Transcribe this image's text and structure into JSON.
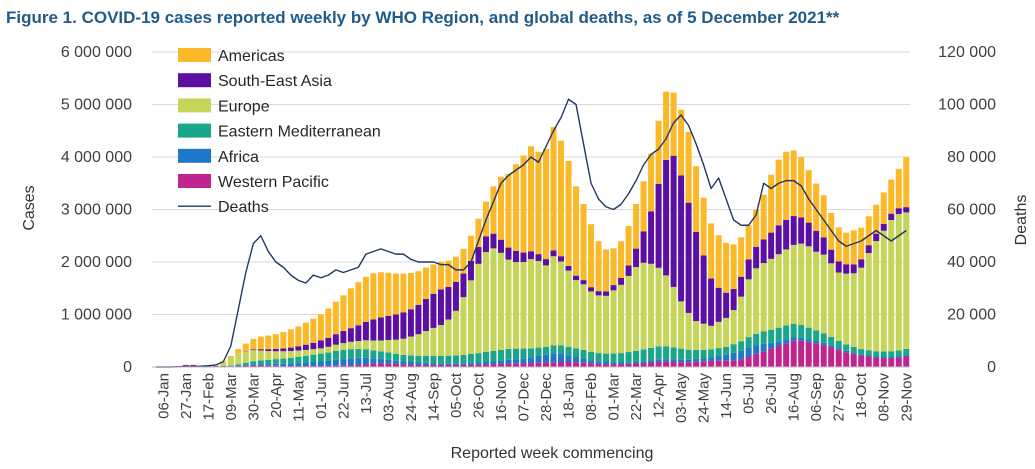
{
  "chart_data": {
    "type": "bar",
    "title": "Figure 1. COVID-19 cases reported weekly by WHO Region, and global deaths, as of 5 December 2021**",
    "xlabel": "Reported week commencing",
    "ylabel": "Cases",
    "y2label": "Deaths",
    "ylim": [
      0,
      6000000
    ],
    "y2lim": [
      0,
      120000
    ],
    "y_ticks": [
      "0",
      "1 000 000",
      "2 000 000",
      "3 000 000",
      "4 000 000",
      "5 000 000",
      "6 000 000"
    ],
    "y2_ticks": [
      "0",
      "20 000",
      "40 000",
      "60 000",
      "80 000",
      "100 000",
      "120 000"
    ],
    "x_tick_labels": [
      "06-Jan",
      "27-Jan",
      "17-Feb",
      "09-Mar",
      "30-Mar",
      "20-Apr",
      "11-May",
      "01-Jun",
      "22-Jun",
      "13-Jul",
      "03-Aug",
      "24-Aug",
      "14-Sep",
      "05-Oct",
      "26-Oct",
      "16-Nov",
      "07-Dec",
      "28-Dec",
      "18-Jan",
      "08-Feb",
      "01-Mar",
      "22-Mar",
      "12-Apr",
      "03-May",
      "24-May",
      "14-Jun",
      "05-Jul",
      "26-Jul",
      "16-Aug",
      "06-Sep",
      "27-Sep",
      "18-Oct",
      "08-Nov",
      "29-Nov"
    ],
    "categories": [
      "2019-12-30",
      "2020-01-06",
      "2020-01-13",
      "2020-01-20",
      "2020-01-27",
      "2020-02-03",
      "2020-02-10",
      "2020-02-17",
      "2020-02-24",
      "2020-03-02",
      "2020-03-09",
      "2020-03-16",
      "2020-03-23",
      "2020-03-30",
      "2020-04-06",
      "2020-04-13",
      "2020-04-20",
      "2020-04-27",
      "2020-05-04",
      "2020-05-11",
      "2020-05-18",
      "2020-05-25",
      "2020-06-01",
      "2020-06-08",
      "2020-06-15",
      "2020-06-22",
      "2020-06-29",
      "2020-07-06",
      "2020-07-13",
      "2020-07-20",
      "2020-07-27",
      "2020-08-03",
      "2020-08-10",
      "2020-08-17",
      "2020-08-24",
      "2020-08-31",
      "2020-09-07",
      "2020-09-14",
      "2020-09-21",
      "2020-09-28",
      "2020-10-05",
      "2020-10-12",
      "2020-10-19",
      "2020-10-26",
      "2020-11-02",
      "2020-11-09",
      "2020-11-16",
      "2020-11-23",
      "2020-11-30",
      "2020-12-07",
      "2020-12-14",
      "2020-12-21",
      "2020-12-28",
      "2021-01-04",
      "2021-01-11",
      "2021-01-18",
      "2021-01-25",
      "2021-02-01",
      "2021-02-08",
      "2021-02-15",
      "2021-02-22",
      "2021-03-01",
      "2021-03-08",
      "2021-03-15",
      "2021-03-22",
      "2021-03-29",
      "2021-04-05",
      "2021-04-12",
      "2021-04-19",
      "2021-04-26",
      "2021-05-03",
      "2021-05-10",
      "2021-05-17",
      "2021-05-24",
      "2021-05-31",
      "2021-06-07",
      "2021-06-14",
      "2021-06-21",
      "2021-06-28",
      "2021-07-05",
      "2021-07-12",
      "2021-07-19",
      "2021-07-26",
      "2021-08-02",
      "2021-08-09",
      "2021-08-16",
      "2021-08-23",
      "2021-08-30",
      "2021-09-06",
      "2021-09-13",
      "2021-09-20",
      "2021-09-27",
      "2021-10-04",
      "2021-10-11",
      "2021-10-18",
      "2021-10-25",
      "2021-11-01",
      "2021-11-08",
      "2021-11-15",
      "2021-11-22",
      "2021-11-29"
    ],
    "legend": [
      "Americas",
      "South-East Asia",
      "Europe",
      "Eastern Mediterranean",
      "Africa",
      "Western Pacific",
      "Deaths"
    ],
    "legend_position": "top-left",
    "grid": true,
    "colors": {
      "Western Pacific": "#c0248f",
      "Africa": "#1f77c8",
      "Eastern Mediterranean": "#1aa68a",
      "Europe": "#c5d55a",
      "South-East Asia": "#5b0fa3",
      "Americas": "#fbb829",
      "Deaths": "#1f3864"
    },
    "series": [
      {
        "name": "Western Pacific",
        "values": [
          0,
          0,
          10000,
          20000,
          40000,
          40000,
          20000,
          20000,
          20000,
          20000,
          15000,
          20000,
          25000,
          30000,
          30000,
          25000,
          25000,
          20000,
          20000,
          20000,
          20000,
          20000,
          20000,
          20000,
          25000,
          30000,
          35000,
          45000,
          55000,
          65000,
          70000,
          70000,
          60000,
          50000,
          45000,
          40000,
          40000,
          40000,
          40000,
          40000,
          40000,
          40000,
          45000,
          45000,
          50000,
          55000,
          60000,
          65000,
          70000,
          75000,
          75000,
          80000,
          85000,
          90000,
          95000,
          95000,
          90000,
          80000,
          70000,
          60000,
          55000,
          55000,
          55000,
          60000,
          65000,
          75000,
          85000,
          95000,
          100000,
          95000,
          90000,
          90000,
          100000,
          110000,
          115000,
          120000,
          120000,
          130000,
          150000,
          200000,
          250000,
          300000,
          350000,
          400000,
          450000,
          500000,
          500000,
          480000,
          450000,
          420000,
          380000,
          330000,
          280000,
          250000,
          220000,
          200000,
          180000,
          170000,
          170000,
          180000,
          200000
        ]
      },
      {
        "name": "Africa",
        "values": [
          0,
          0,
          0,
          0,
          0,
          0,
          0,
          0,
          0,
          0,
          5000,
          10000,
          15000,
          20000,
          25000,
          30000,
          35000,
          40000,
          45000,
          55000,
          65000,
          75000,
          85000,
          95000,
          110000,
          120000,
          130000,
          130000,
          120000,
          100000,
          85000,
          70000,
          60000,
          55000,
          50000,
          45000,
          40000,
          35000,
          30000,
          30000,
          30000,
          30000,
          35000,
          40000,
          45000,
          50000,
          55000,
          70000,
          80000,
          90000,
          110000,
          130000,
          150000,
          170000,
          160000,
          130000,
          100000,
          80000,
          60000,
          50000,
          40000,
          35000,
          30000,
          30000,
          30000,
          35000,
          40000,
          45000,
          50000,
          50000,
          50000,
          50000,
          55000,
          60000,
          70000,
          90000,
          110000,
          140000,
          160000,
          170000,
          160000,
          140000,
          110000,
          90000,
          80000,
          70000,
          60000,
          50000,
          45000,
          40000,
          35000,
          30000,
          28000,
          25000,
          22000,
          20000,
          20000,
          20000,
          20000,
          20000,
          25000
        ]
      },
      {
        "name": "Eastern Mediterranean",
        "values": [
          0,
          0,
          0,
          0,
          0,
          0,
          0,
          0,
          0,
          0,
          10000,
          20000,
          40000,
          60000,
          70000,
          80000,
          90000,
          100000,
          110000,
          120000,
          130000,
          140000,
          150000,
          160000,
          170000,
          175000,
          175000,
          170000,
          165000,
          150000,
          140000,
          135000,
          130000,
          125000,
          125000,
          130000,
          135000,
          140000,
          140000,
          145000,
          150000,
          160000,
          170000,
          180000,
          195000,
          205000,
          210000,
          210000,
          200000,
          185000,
          170000,
          160000,
          150000,
          150000,
          155000,
          160000,
          165000,
          165000,
          160000,
          155000,
          160000,
          170000,
          180000,
          195000,
          210000,
          225000,
          240000,
          250000,
          245000,
          230000,
          210000,
          190000,
          170000,
          155000,
          150000,
          150000,
          155000,
          165000,
          180000,
          200000,
          220000,
          240000,
          250000,
          260000,
          260000,
          255000,
          240000,
          220000,
          200000,
          180000,
          160000,
          140000,
          120000,
          110000,
          100000,
          100000,
          100000,
          105000,
          110000,
          115000,
          120000
        ]
      },
      {
        "name": "Europe",
        "values": [
          0,
          0,
          0,
          0,
          0,
          0,
          1000,
          5000,
          20000,
          80000,
          150000,
          210000,
          220000,
          210000,
          190000,
          170000,
          150000,
          140000,
          130000,
          120000,
          110000,
          105000,
          100000,
          110000,
          120000,
          130000,
          140000,
          150000,
          170000,
          190000,
          210000,
          240000,
          270000,
          310000,
          360000,
          410000,
          470000,
          530000,
          590000,
          690000,
          850000,
          1100000,
          1400000,
          1700000,
          1900000,
          1950000,
          1850000,
          1700000,
          1650000,
          1650000,
          1700000,
          1650000,
          1550000,
          1700000,
          1600000,
          1450000,
          1300000,
          1250000,
          1150000,
          1100000,
          1100000,
          1200000,
          1300000,
          1450000,
          1600000,
          1650000,
          1600000,
          1500000,
          1350000,
          1150000,
          900000,
          700000,
          550000,
          500000,
          450000,
          500000,
          550000,
          650000,
          850000,
          1100000,
          1250000,
          1300000,
          1350000,
          1400000,
          1450000,
          1500000,
          1550000,
          1550000,
          1500000,
          1500000,
          1400000,
          1300000,
          1350000,
          1400000,
          1550000,
          1850000,
          2100000,
          2300000,
          2500000,
          2600000,
          2600000
        ]
      },
      {
        "name": "South-East Asia",
        "values": [
          0,
          0,
          0,
          0,
          0,
          0,
          0,
          0,
          0,
          0,
          0,
          1000,
          5000,
          15000,
          25000,
          35000,
          45000,
          55000,
          65000,
          80000,
          100000,
          120000,
          150000,
          170000,
          200000,
          230000,
          260000,
          300000,
          350000,
          400000,
          440000,
          460000,
          480000,
          500000,
          520000,
          560000,
          610000,
          650000,
          680000,
          620000,
          550000,
          450000,
          370000,
          320000,
          300000,
          280000,
          250000,
          230000,
          210000,
          180000,
          150000,
          130000,
          120000,
          110000,
          100000,
          90000,
          85000,
          80000,
          80000,
          80000,
          85000,
          100000,
          130000,
          200000,
          350000,
          600000,
          1000000,
          1600000,
          2200000,
          2500000,
          2400000,
          2100000,
          1700000,
          1300000,
          900000,
          650000,
          480000,
          400000,
          380000,
          380000,
          410000,
          450000,
          500000,
          550000,
          560000,
          550000,
          500000,
          450000,
          400000,
          330000,
          260000,
          210000,
          180000,
          170000,
          160000,
          150000,
          140000,
          130000,
          120000,
          110000,
          100000
        ]
      },
      {
        "name": "Americas",
        "values": [
          0,
          0,
          0,
          0,
          0,
          0,
          0,
          0,
          0,
          10000,
          30000,
          80000,
          140000,
          200000,
          240000,
          260000,
          280000,
          310000,
          350000,
          380000,
          420000,
          460000,
          500000,
          560000,
          620000,
          680000,
          760000,
          820000,
          860000,
          880000,
          860000,
          820000,
          780000,
          740000,
          690000,
          640000,
          600000,
          560000,
          520000,
          500000,
          480000,
          470000,
          480000,
          540000,
          660000,
          900000,
          1200000,
          1400000,
          1650000,
          1850000,
          2000000,
          1950000,
          2100000,
          2350000,
          2200000,
          2000000,
          1700000,
          1450000,
          1200000,
          950000,
          800000,
          700000,
          700000,
          750000,
          850000,
          950000,
          1100000,
          1200000,
          1300000,
          1200000,
          1250000,
          1350000,
          1250000,
          1100000,
          1050000,
          1000000,
          950000,
          850000,
          750000,
          650000,
          700000,
          850000,
          1100000,
          1250000,
          1300000,
          1250000,
          1150000,
          1000000,
          900000,
          800000,
          700000,
          650000,
          600000,
          650000,
          600000,
          550000,
          550000,
          600000,
          650000,
          750000,
          950000
        ]
      },
      {
        "name": "Deaths",
        "axis": "right",
        "values": [
          0,
          0,
          0,
          100,
          150,
          200,
          300,
          500,
          800,
          2000,
          8000,
          22000,
          36000,
          47000,
          50000,
          44000,
          40000,
          38000,
          35000,
          33000,
          32000,
          35000,
          34000,
          35000,
          37000,
          36000,
          37000,
          38000,
          43000,
          44000,
          45000,
          44000,
          43000,
          43000,
          41000,
          40000,
          40000,
          40000,
          39000,
          39000,
          37000,
          37000,
          40000,
          48000,
          56000,
          63000,
          70000,
          73000,
          75000,
          77000,
          80000,
          78000,
          84000,
          90000,
          95000,
          102000,
          100000,
          85000,
          70000,
          64000,
          61000,
          60000,
          62000,
          66000,
          71000,
          77000,
          81000,
          83000,
          87000,
          93000,
          96000,
          92000,
          85000,
          77000,
          68000,
          72000,
          64000,
          56000,
          54000,
          54000,
          58000,
          70000,
          68000,
          70000,
          71000,
          71000,
          69000,
          64000,
          60000,
          56000,
          52000,
          48000,
          46000,
          47000,
          48000,
          50000,
          52000,
          50000,
          48000,
          50000,
          52000
        ]
      }
    ]
  }
}
